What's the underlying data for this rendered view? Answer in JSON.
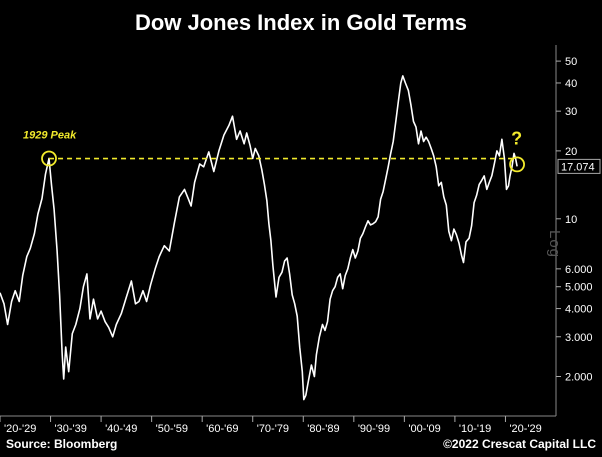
{
  "chart_data": {
    "type": "line",
    "title": "Dow Jones Index in Gold Terms",
    "yscale": "log",
    "ylim": [
      1.45,
      56
    ],
    "xlim": [
      1920,
      2030
    ],
    "y_axis_label": "Log",
    "y_ticks": [
      "50",
      "40",
      "30",
      "20",
      "10",
      "6.000",
      "5.000",
      "4.000",
      "3.000",
      "2.000"
    ],
    "y_tick_values": [
      50,
      40,
      30,
      20,
      10,
      6,
      5,
      4,
      3,
      2
    ],
    "x_ticks": [
      "'20-'29",
      "'30-'39",
      "'40-'49",
      "'50-'59",
      "'60-'69",
      "'70-'79",
      "'80-'89",
      "'90-'99",
      "'00-'09",
      "'10-'19",
      "'20-'29"
    ],
    "x_tick_values": [
      1920,
      1930,
      1940,
      1950,
      1960,
      1970,
      1980,
      1990,
      2000,
      2010,
      2020
    ],
    "last_value_label": "17.074",
    "last_value": 17.074,
    "annotations": {
      "peak_label": "1929 Peak",
      "peak_point": [
        1929.7,
        18.5
      ],
      "current_point": [
        2022.3,
        17.074
      ],
      "question_mark": "?",
      "reference_level": 18.5
    },
    "series": [
      {
        "values": [
          [
            1920.0,
            4.7
          ],
          [
            1920.8,
            4.2
          ],
          [
            1921.5,
            3.4
          ],
          [
            1922.3,
            4.3
          ],
          [
            1923.0,
            4.8
          ],
          [
            1923.8,
            4.3
          ],
          [
            1924.5,
            5.6
          ],
          [
            1925.3,
            6.8
          ],
          [
            1926.0,
            7.4
          ],
          [
            1926.8,
            8.6
          ],
          [
            1927.5,
            10.5
          ],
          [
            1928.3,
            12.3
          ],
          [
            1929.0,
            15.8
          ],
          [
            1929.7,
            18.5
          ],
          [
            1930.2,
            14.0
          ],
          [
            1930.7,
            11.0
          ],
          [
            1931.3,
            7.2
          ],
          [
            1931.8,
            4.6
          ],
          [
            1932.3,
            2.5
          ],
          [
            1932.6,
            1.95
          ],
          [
            1933.0,
            2.7
          ],
          [
            1933.6,
            2.1
          ],
          [
            1934.3,
            3.1
          ],
          [
            1935.0,
            3.4
          ],
          [
            1935.8,
            4.0
          ],
          [
            1936.5,
            5.0
          ],
          [
            1937.2,
            5.7
          ],
          [
            1937.8,
            3.6
          ],
          [
            1938.5,
            4.4
          ],
          [
            1939.3,
            3.6
          ],
          [
            1940.0,
            3.9
          ],
          [
            1940.8,
            3.5
          ],
          [
            1941.5,
            3.3
          ],
          [
            1942.3,
            3.0
          ],
          [
            1943.0,
            3.4
          ],
          [
            1944.0,
            3.8
          ],
          [
            1945.0,
            4.5
          ],
          [
            1946.0,
            5.3
          ],
          [
            1946.8,
            4.2
          ],
          [
            1947.5,
            4.3
          ],
          [
            1948.3,
            4.8
          ],
          [
            1949.0,
            4.3
          ],
          [
            1949.8,
            5.1
          ],
          [
            1950.7,
            6.0
          ],
          [
            1951.5,
            6.8
          ],
          [
            1952.5,
            7.6
          ],
          [
            1953.5,
            7.2
          ],
          [
            1954.5,
            9.6
          ],
          [
            1955.5,
            12.5
          ],
          [
            1956.5,
            13.5
          ],
          [
            1957.3,
            12.2
          ],
          [
            1957.8,
            11.4
          ],
          [
            1958.5,
            14.5
          ],
          [
            1959.5,
            17.5
          ],
          [
            1960.3,
            17.0
          ],
          [
            1961.3,
            19.8
          ],
          [
            1962.3,
            16.2
          ],
          [
            1963.3,
            20.0
          ],
          [
            1964.3,
            23.5
          ],
          [
            1965.3,
            26.0
          ],
          [
            1966.0,
            28.5
          ],
          [
            1966.8,
            22.5
          ],
          [
            1967.5,
            24.5
          ],
          [
            1968.3,
            21.5
          ],
          [
            1968.8,
            24.0
          ],
          [
            1969.5,
            21.0
          ],
          [
            1970.0,
            18.5
          ],
          [
            1970.5,
            20.5
          ],
          [
            1971.2,
            19.0
          ],
          [
            1971.8,
            16.5
          ],
          [
            1972.3,
            14.2
          ],
          [
            1972.8,
            12.0
          ],
          [
            1973.2,
            9.5
          ],
          [
            1973.6,
            8.0
          ],
          [
            1974.0,
            6.2
          ],
          [
            1974.6,
            4.5
          ],
          [
            1975.2,
            5.5
          ],
          [
            1975.8,
            5.8
          ],
          [
            1976.3,
            6.5
          ],
          [
            1976.8,
            6.7
          ],
          [
            1977.3,
            5.7
          ],
          [
            1977.8,
            4.6
          ],
          [
            1978.3,
            4.2
          ],
          [
            1978.8,
            3.7
          ],
          [
            1979.3,
            2.7
          ],
          [
            1979.8,
            2.1
          ],
          [
            1980.1,
            1.58
          ],
          [
            1980.5,
            1.65
          ],
          [
            1981.0,
            1.9
          ],
          [
            1981.6,
            2.25
          ],
          [
            1982.2,
            2.0
          ],
          [
            1982.6,
            2.5
          ],
          [
            1983.2,
            3.0
          ],
          [
            1983.8,
            3.4
          ],
          [
            1984.3,
            3.2
          ],
          [
            1984.8,
            3.5
          ],
          [
            1985.3,
            4.4
          ],
          [
            1985.8,
            4.8
          ],
          [
            1986.3,
            5.0
          ],
          [
            1986.8,
            5.5
          ],
          [
            1987.3,
            5.7
          ],
          [
            1987.8,
            4.9
          ],
          [
            1988.3,
            5.6
          ],
          [
            1988.8,
            6.0
          ],
          [
            1989.3,
            6.7
          ],
          [
            1989.8,
            7.3
          ],
          [
            1990.3,
            6.7
          ],
          [
            1990.8,
            7.2
          ],
          [
            1991.3,
            8.2
          ],
          [
            1991.8,
            8.6
          ],
          [
            1992.3,
            9.2
          ],
          [
            1992.8,
            9.8
          ],
          [
            1993.3,
            9.4
          ],
          [
            1993.8,
            9.5
          ],
          [
            1994.3,
            9.7
          ],
          [
            1994.8,
            10.2
          ],
          [
            1995.3,
            12.2
          ],
          [
            1995.8,
            13.2
          ],
          [
            1996.3,
            15.0
          ],
          [
            1996.8,
            17.0
          ],
          [
            1997.3,
            19.5
          ],
          [
            1997.8,
            22.0
          ],
          [
            1998.3,
            27.0
          ],
          [
            1998.8,
            33.0
          ],
          [
            1999.3,
            40.0
          ],
          [
            1999.7,
            43.0
          ],
          [
            2000.2,
            40.0
          ],
          [
            2000.8,
            37.0
          ],
          [
            2001.3,
            32.0
          ],
          [
            2001.8,
            27.0
          ],
          [
            2002.3,
            25.5
          ],
          [
            2002.8,
            21.5
          ],
          [
            2003.3,
            24.5
          ],
          [
            2003.8,
            22.0
          ],
          [
            2004.3,
            23.0
          ],
          [
            2004.8,
            22.0
          ],
          [
            2005.3,
            20.5
          ],
          [
            2005.8,
            19.0
          ],
          [
            2006.3,
            17.0
          ],
          [
            2006.8,
            14.0
          ],
          [
            2007.3,
            14.5
          ],
          [
            2007.8,
            12.5
          ],
          [
            2008.3,
            11.5
          ],
          [
            2008.8,
            8.8
          ],
          [
            2009.3,
            8.0
          ],
          [
            2009.8,
            9.0
          ],
          [
            2010.3,
            8.5
          ],
          [
            2010.8,
            7.8
          ],
          [
            2011.3,
            6.9
          ],
          [
            2011.7,
            6.4
          ],
          [
            2012.2,
            7.9
          ],
          [
            2012.8,
            8.2
          ],
          [
            2013.3,
            9.3
          ],
          [
            2013.8,
            11.8
          ],
          [
            2014.3,
            12.7
          ],
          [
            2014.8,
            14.2
          ],
          [
            2015.3,
            14.8
          ],
          [
            2015.8,
            15.5
          ],
          [
            2016.3,
            13.5
          ],
          [
            2016.8,
            14.5
          ],
          [
            2017.3,
            15.5
          ],
          [
            2017.8,
            17.5
          ],
          [
            2018.3,
            20.0
          ],
          [
            2018.8,
            19.0
          ],
          [
            2019.3,
            22.5
          ],
          [
            2019.8,
            18.5
          ],
          [
            2020.2,
            13.5
          ],
          [
            2020.6,
            14.0
          ],
          [
            2020.9,
            15.5
          ],
          [
            2021.3,
            17.0
          ],
          [
            2021.7,
            19.5
          ],
          [
            2022.0,
            18.5
          ],
          [
            2022.3,
            17.074
          ]
        ]
      }
    ]
  },
  "footer": {
    "source": "Source: Bloomberg",
    "copyright": "©2022 Crescat Capital LLC"
  },
  "colors": {
    "background": "#000000",
    "line": "#ffffff",
    "annotation": "#f2ea2c",
    "grid": "#3a3a3a"
  }
}
